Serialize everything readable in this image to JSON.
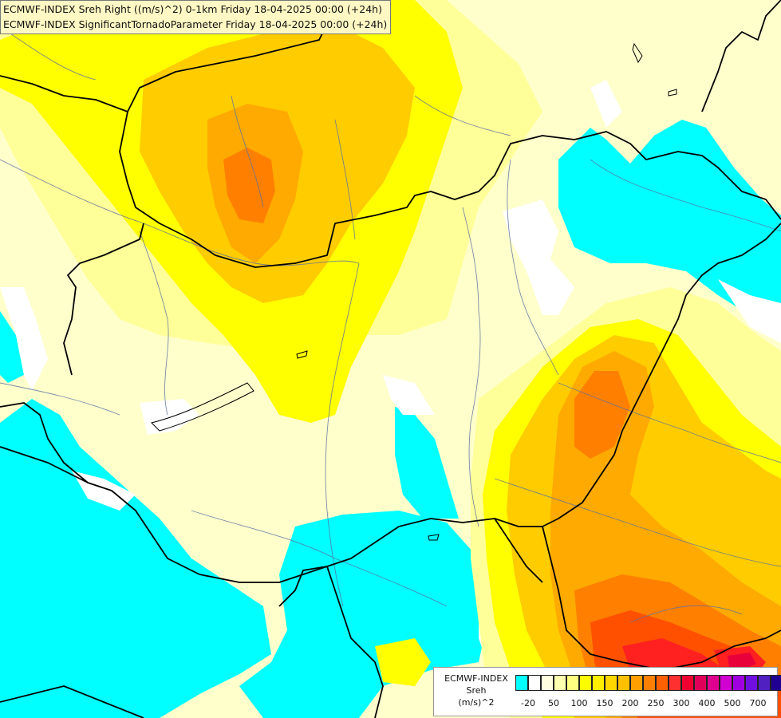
{
  "header": {
    "line1": "ECMWF-INDEX Sreh Right ((m/s)^2) 0-1km Friday 18-04-2025 00:00 (+24h)",
    "line2": "ECMWF-INDEX SignificantTornadoParameter Friday 18-04-2025 00:00 (+24h)"
  },
  "legend": {
    "title1": "ECMWF-INDEX",
    "title2": "Sreh",
    "title3": "(m/s)^2",
    "tick_labels": [
      "-20",
      "50",
      "100",
      "150",
      "200",
      "250",
      "300",
      "400",
      "500",
      "700"
    ],
    "colors": [
      "#00ffff",
      "#ffffff",
      "#ffffe0",
      "#ffffb0",
      "#ffff80",
      "#ffff00",
      "#ffee00",
      "#ffd700",
      "#ffc000",
      "#ffa000",
      "#ff8000",
      "#ff6000",
      "#ff3030",
      "#f00030",
      "#e0005a",
      "#e00090",
      "#d000d0",
      "#a000e0",
      "#7010e0",
      "#5020c0",
      "#200090"
    ]
  },
  "map_colors": {
    "cyan": "#00ffff",
    "white": "#ffffff",
    "pale": "#ffffcc",
    "light_yellow": "#ffff99",
    "yellow": "#ffff00",
    "deep_yellow": "#ffe000",
    "gold": "#ffcc00",
    "orange": "#ffaa00",
    "dark_orange": "#ff8000",
    "red_orange": "#ff5000",
    "red": "#ff2020",
    "crimson": "#e8003a"
  }
}
